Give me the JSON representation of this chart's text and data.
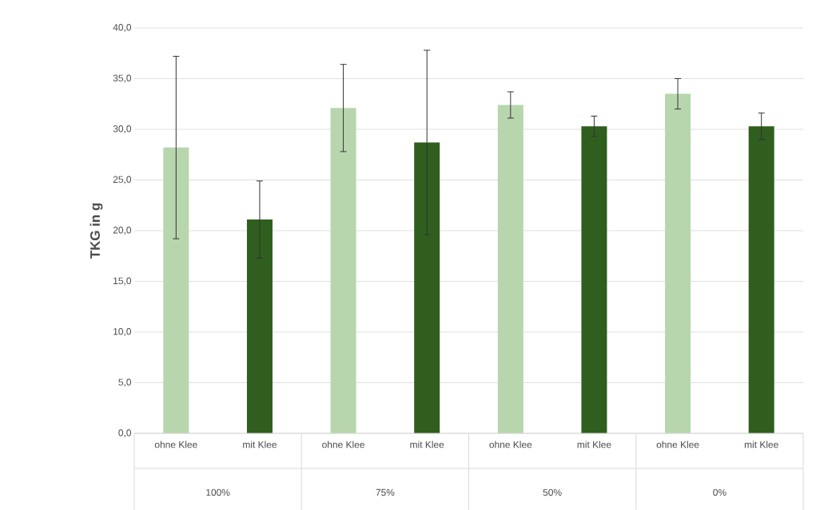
{
  "chart_data": {
    "type": "bar",
    "ylabel": "TKG in g",
    "categories": [
      "ohne Klee",
      "mit Klee",
      "ohne Klee",
      "mit Klee",
      "ohne Klee",
      "mit Klee",
      "ohne Klee",
      "mit Klee"
    ],
    "values": [
      28.2,
      21.1,
      32.1,
      28.7,
      32.4,
      30.3,
      33.5,
      30.3
    ],
    "errors": [
      9.0,
      3.8,
      4.3,
      9.1,
      1.3,
      1.0,
      1.5,
      1.3
    ],
    "colors": [
      "#b8d6ad",
      "#2f5e1e",
      "#b8d6ad",
      "#2f5e1e",
      "#b8d6ad",
      "#2f5e1e",
      "#b8d6ad",
      "#2f5e1e"
    ],
    "annotations": [
      "100%",
      "75%",
      "50%",
      "0%"
    ],
    "ylim": [
      0,
      40
    ],
    "yticks": [
      {
        "value": 0,
        "label": "0,0"
      },
      {
        "value": 5,
        "label": "5,0"
      },
      {
        "value": 10,
        "label": "10,0"
      },
      {
        "value": 15,
        "label": "15,0"
      },
      {
        "value": 20,
        "label": "20,0"
      },
      {
        "value": 25,
        "label": "25,0"
      },
      {
        "value": 30,
        "label": "30,0"
      },
      {
        "value": 35,
        "label": "35,0"
      },
      {
        "value": 40,
        "label": "40,0"
      }
    ],
    "grid": "y"
  }
}
